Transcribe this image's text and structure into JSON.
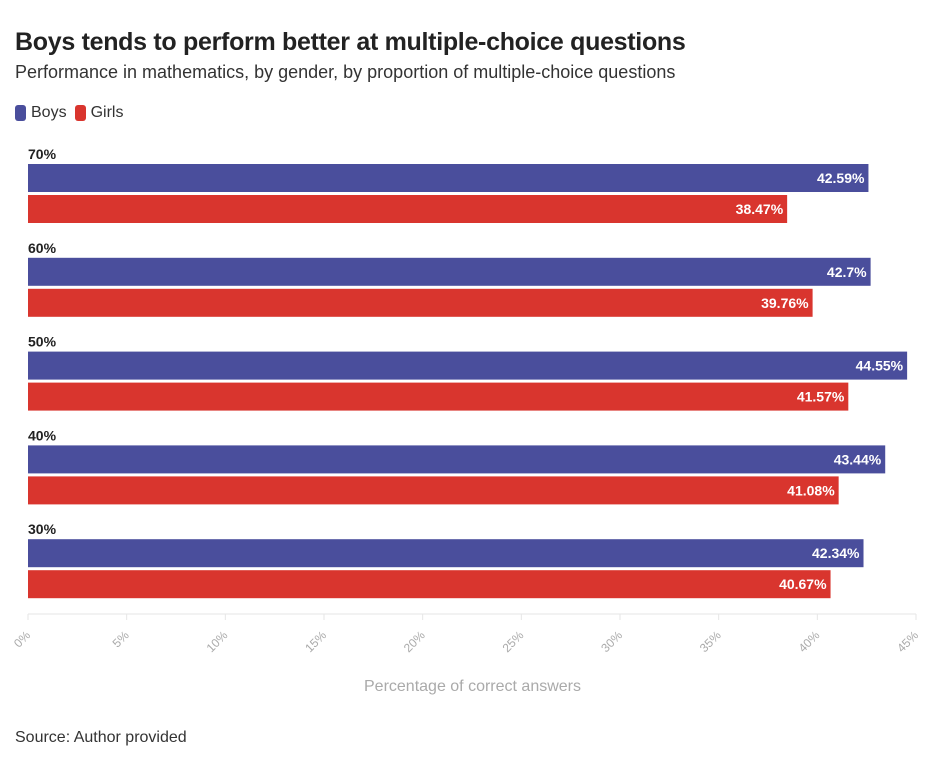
{
  "chart_data": {
    "type": "bar",
    "orientation": "horizontal",
    "title": "Boys tends to perform better at multiple-choice questions",
    "subtitle": "Performance in mathematics, by gender, by proportion of multiple-choice questions",
    "categories": [
      "70%",
      "60%",
      "50%",
      "40%",
      "30%"
    ],
    "series": [
      {
        "name": "Boys",
        "color": "#4a4e9c",
        "values": [
          42.59,
          42.7,
          44.55,
          43.44,
          42.34
        ],
        "labels": [
          "42.59%",
          "42.7%",
          "44.55%",
          "43.44%",
          "42.34%"
        ]
      },
      {
        "name": "Girls",
        "color": "#d9352e",
        "values": [
          38.47,
          39.76,
          41.57,
          41.08,
          40.67
        ],
        "labels": [
          "38.47%",
          "39.76%",
          "41.57%",
          "41.08%",
          "40.67%"
        ]
      }
    ],
    "xlabel": "Percentage of correct answers",
    "ylabel": "",
    "xlim": [
      0,
      45
    ],
    "xticks": [
      0,
      5,
      10,
      15,
      20,
      25,
      30,
      35,
      40,
      45
    ],
    "xtick_labels": [
      "0%",
      "5%",
      "10%",
      "15%",
      "20%",
      "25%",
      "30%",
      "35%",
      "40%",
      "45%"
    ],
    "grid": false,
    "legend_position": "top-left",
    "source": "Source: Author provided"
  }
}
